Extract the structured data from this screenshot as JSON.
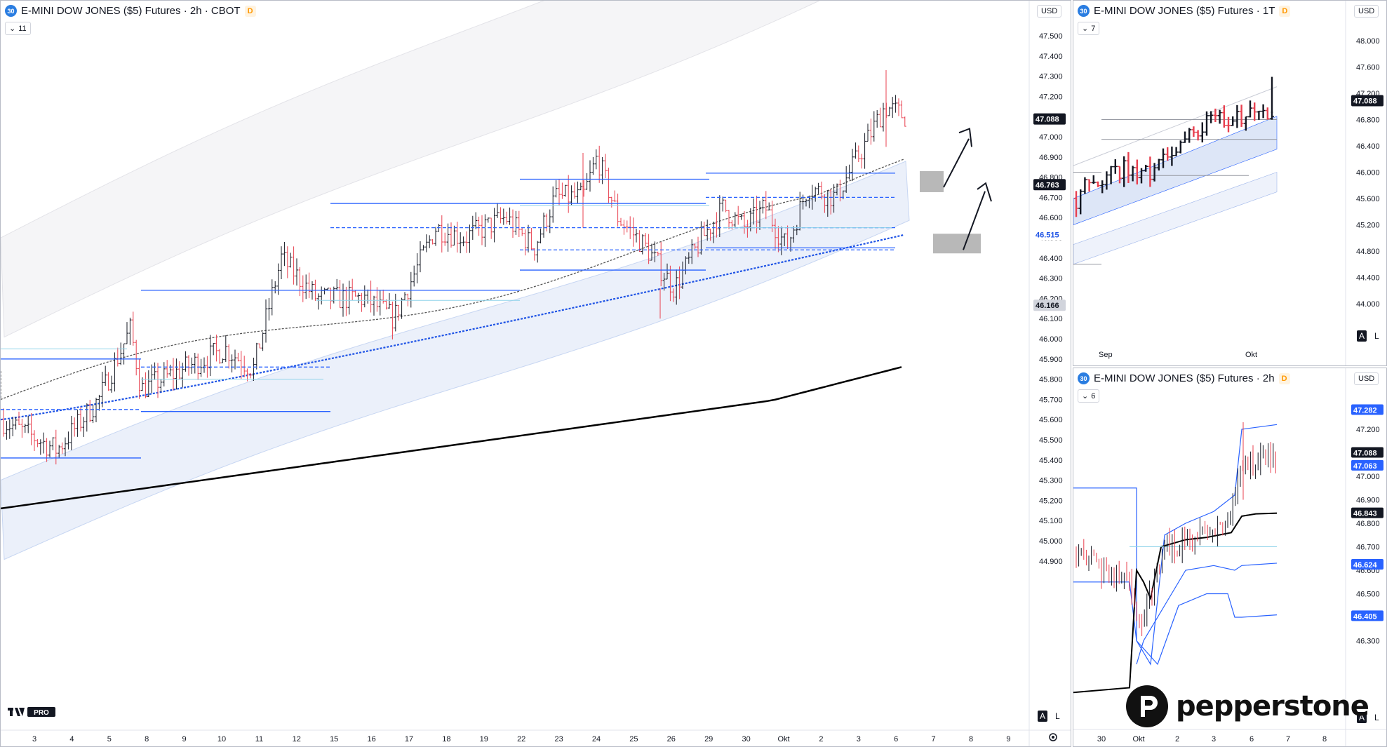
{
  "main": {
    "symbol_badge": "30",
    "title": "E-MINI DOW JONES ($5) Futures · 2h · CBOT",
    "d_badge": "D",
    "indicator_count": "11",
    "currency": "USD",
    "price_ticks": [
      "47.500",
      "47.400",
      "47.300",
      "47.200",
      "47.100",
      "47.000",
      "46.900",
      "46.800",
      "46.700",
      "46.600",
      "46.500",
      "46.400",
      "46.300",
      "46.200",
      "46.100",
      "46.000",
      "45.900",
      "45.800",
      "45.700",
      "45.600",
      "45.500",
      "45.400",
      "45.300",
      "45.200",
      "45.100",
      "45.000",
      "44.900"
    ],
    "price_tags": {
      "last": "47.088",
      "ema": "46.763",
      "blue": "46.515",
      "gray": "46.166"
    },
    "date_ticks": [
      "3",
      "4",
      "5",
      "8",
      "9",
      "10",
      "11",
      "12",
      "15",
      "16",
      "17",
      "18",
      "19",
      "22",
      "23",
      "24",
      "25",
      "26",
      "29",
      "30",
      "Okt",
      "2",
      "3",
      "6",
      "7",
      "8",
      "9"
    ],
    "auto_label": "A",
    "log_label": "L",
    "logo_text": "PRO"
  },
  "top_right": {
    "symbol_badge": "30",
    "title": "E-MINI DOW JONES ($5) Futures · 1T",
    "d_badge": "D",
    "indicator_count": "7",
    "currency": "USD",
    "price_ticks": [
      "48.000",
      "47.600",
      "47.200",
      "46.800",
      "46.400",
      "46.000",
      "45.600",
      "45.200",
      "44.800",
      "44.400",
      "44.000"
    ],
    "price_tag": "47.088",
    "date_ticks": [
      "Sep",
      "Okt"
    ],
    "auto_label": "A",
    "log_label": "L"
  },
  "bottom_right": {
    "symbol_badge": "30",
    "title": "E-MINI DOW JONES ($5) Futures · 2h",
    "d_badge": "D",
    "indicator_count": "6",
    "currency": "USD",
    "price_ticks": [
      "47.200",
      "47.000",
      "46.900",
      "46.800",
      "46.700",
      "46.600",
      "46.500",
      "46.400",
      "46.300"
    ],
    "price_tags": {
      "upper": "47.282",
      "last": "47.088",
      "mid": "47.063",
      "vwap": "46.843",
      "lower": "46.624",
      "lowest": "46.405"
    },
    "date_ticks": [
      "30",
      "Okt",
      "2",
      "3",
      "6",
      "7",
      "8"
    ],
    "auto_label": "A",
    "log_label": "L"
  },
  "brand": {
    "name": "pepperstone"
  },
  "colors": {
    "up": "#131722",
    "down": "#e8404f",
    "level": "#2962ff",
    "ema50": "#555555",
    "ema200": "#1e53e5",
    "band": "#dde6f7",
    "vwap": "#000000"
  }
}
